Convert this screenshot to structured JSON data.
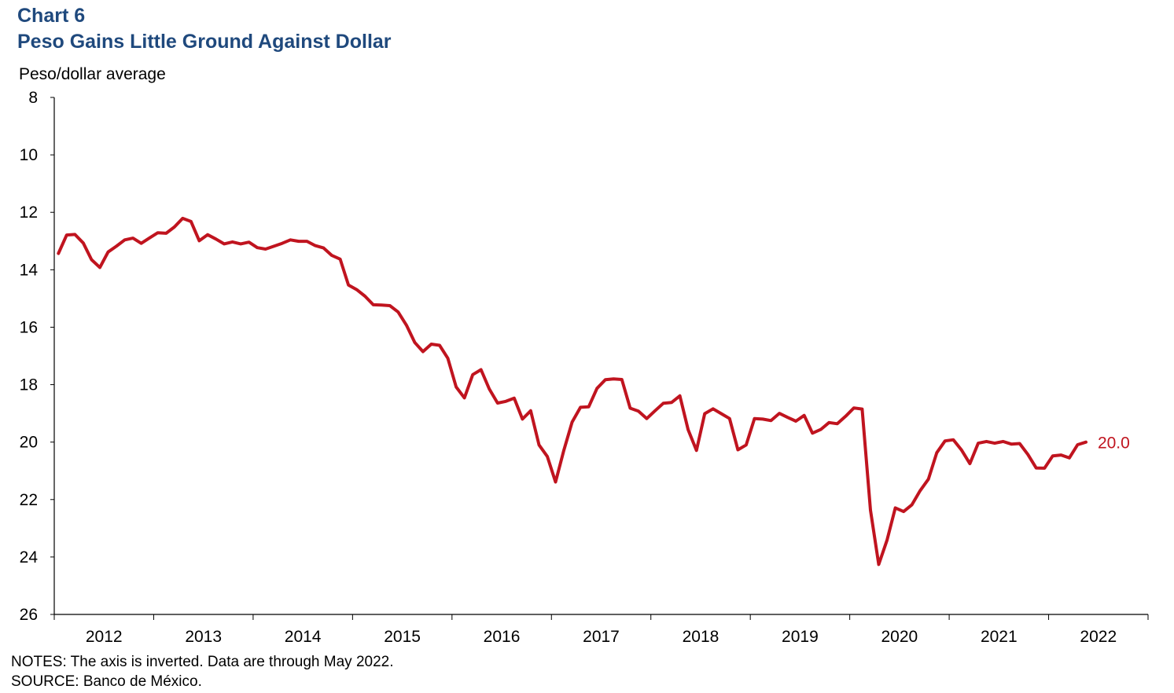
{
  "header": {
    "chart_number": "Chart 6",
    "title": "Peso Gains Little Ground Against Dollar",
    "y_unit": "Peso/dollar average"
  },
  "footer": {
    "notes": "NOTES: The axis is inverted. Data are through  May 2022.",
    "source": "SOURCE: Banco de México."
  },
  "chart_data": {
    "type": "line",
    "title": "Peso Gains Little Ground Against Dollar",
    "xlabel": "",
    "ylabel": "Peso/dollar average",
    "y_inverted": true,
    "ylim": [
      8,
      26
    ],
    "yticks": [
      8,
      10,
      12,
      14,
      16,
      18,
      20,
      22,
      24,
      26
    ],
    "xticks": [
      "2012",
      "2013",
      "2014",
      "2015",
      "2016",
      "2017",
      "2018",
      "2019",
      "2020",
      "2021",
      "2022"
    ],
    "x_start": "2012-01",
    "x_end": "2022-05",
    "grid": false,
    "colors": {
      "series": "#c0141f",
      "text": "#000000",
      "title": "#1f497d"
    },
    "series": [
      {
        "end_label": "20.0",
        "x": [
          "2012-01",
          "2012-02",
          "2012-03",
          "2012-04",
          "2012-05",
          "2012-06",
          "2012-07",
          "2012-08",
          "2012-09",
          "2012-10",
          "2012-11",
          "2012-12",
          "2013-01",
          "2013-02",
          "2013-03",
          "2013-04",
          "2013-05",
          "2013-06",
          "2013-07",
          "2013-08",
          "2013-09",
          "2013-10",
          "2013-11",
          "2013-12",
          "2014-01",
          "2014-02",
          "2014-03",
          "2014-04",
          "2014-05",
          "2014-06",
          "2014-07",
          "2014-08",
          "2014-09",
          "2014-10",
          "2014-11",
          "2014-12",
          "2015-01",
          "2015-02",
          "2015-03",
          "2015-04",
          "2015-05",
          "2015-06",
          "2015-07",
          "2015-08",
          "2015-09",
          "2015-10",
          "2015-11",
          "2015-12",
          "2016-01",
          "2016-02",
          "2016-03",
          "2016-04",
          "2016-05",
          "2016-06",
          "2016-07",
          "2016-08",
          "2016-09",
          "2016-10",
          "2016-11",
          "2016-12",
          "2017-01",
          "2017-02",
          "2017-03",
          "2017-04",
          "2017-05",
          "2017-06",
          "2017-07",
          "2017-08",
          "2017-09",
          "2017-10",
          "2017-11",
          "2017-12",
          "2018-01",
          "2018-02",
          "2018-03",
          "2018-04",
          "2018-05",
          "2018-06",
          "2018-07",
          "2018-08",
          "2018-09",
          "2018-10",
          "2018-11",
          "2018-12",
          "2019-01",
          "2019-02",
          "2019-03",
          "2019-04",
          "2019-05",
          "2019-06",
          "2019-07",
          "2019-08",
          "2019-09",
          "2019-10",
          "2019-11",
          "2019-12",
          "2020-01",
          "2020-02",
          "2020-03",
          "2020-04",
          "2020-05",
          "2020-06",
          "2020-07",
          "2020-08",
          "2020-09",
          "2020-10",
          "2020-11",
          "2020-12",
          "2021-01",
          "2021-02",
          "2021-03",
          "2021-04",
          "2021-05",
          "2021-06",
          "2021-07",
          "2021-08",
          "2021-09",
          "2021-10",
          "2021-11",
          "2021-12",
          "2022-01",
          "2022-02",
          "2022-03",
          "2022-04",
          "2022-05"
        ],
        "values": [
          13.43,
          12.79,
          12.77,
          13.07,
          13.65,
          13.92,
          13.38,
          13.18,
          12.96,
          12.9,
          13.08,
          12.89,
          12.71,
          12.73,
          12.51,
          12.21,
          12.32,
          12.99,
          12.78,
          12.93,
          13.1,
          13.03,
          13.1,
          13.04,
          13.23,
          13.28,
          13.18,
          13.08,
          12.96,
          13.01,
          13.01,
          13.16,
          13.24,
          13.5,
          13.63,
          14.53,
          14.69,
          14.92,
          15.22,
          15.23,
          15.25,
          15.47,
          15.93,
          16.53,
          16.85,
          16.59,
          16.63,
          17.08,
          18.08,
          18.46,
          17.65,
          17.48,
          18.15,
          18.64,
          18.58,
          18.47,
          19.2,
          18.91,
          20.1,
          20.5,
          21.39,
          20.28,
          19.3,
          18.79,
          18.77,
          18.13,
          17.83,
          17.8,
          17.82,
          18.82,
          18.92,
          19.18,
          18.91,
          18.65,
          18.62,
          18.39,
          19.57,
          20.29,
          19.01,
          18.84,
          19.01,
          19.18,
          20.27,
          20.1,
          19.18,
          19.2,
          19.25,
          19.0,
          19.14,
          19.27,
          19.07,
          19.69,
          19.56,
          19.32,
          19.36,
          19.1,
          18.81,
          18.85,
          22.37,
          24.26,
          23.41,
          22.29,
          22.42,
          22.18,
          21.69,
          21.29,
          20.37,
          19.96,
          19.92,
          20.28,
          20.75,
          20.04,
          19.98,
          20.04,
          19.98,
          20.07,
          20.05,
          20.43,
          20.9,
          20.91,
          20.48,
          20.45,
          20.55,
          20.09,
          20.0
        ]
      }
    ]
  }
}
